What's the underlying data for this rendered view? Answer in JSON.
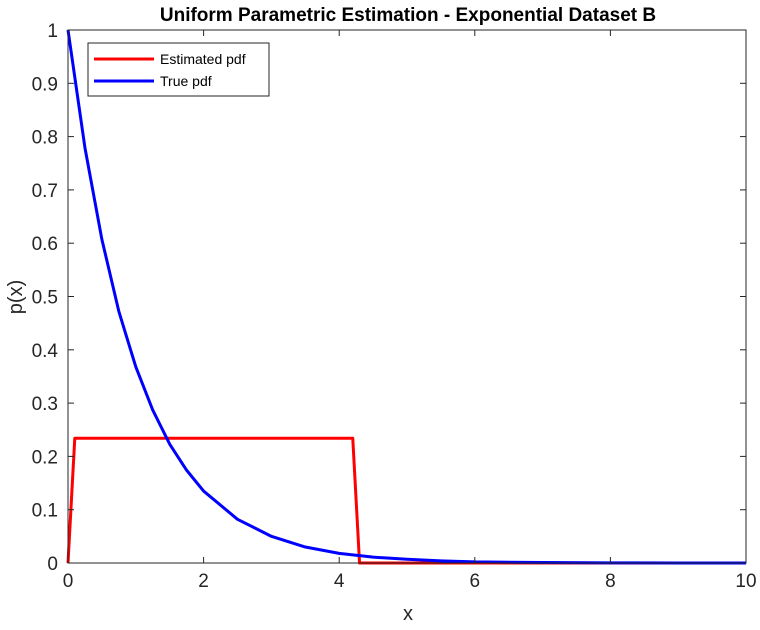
{
  "chart_data": {
    "type": "line",
    "title": "Uniform Parametric Estimation - Exponential Dataset B",
    "xlabel": "x",
    "ylabel": "p(x)",
    "xlim": [
      0,
      10
    ],
    "ylim": [
      0,
      1
    ],
    "xticks": [
      0,
      2,
      4,
      6,
      8,
      10
    ],
    "xtick_labels": [
      "0",
      "2",
      "4",
      "6",
      "8",
      "10"
    ],
    "yticks": [
      0,
      0.1,
      0.2,
      0.3,
      0.4,
      0.5,
      0.6,
      0.7,
      0.8,
      0.9,
      1
    ],
    "ytick_labels": [
      "0",
      "0.1",
      "0.2",
      "0.3",
      "0.4",
      "0.5",
      "0.6",
      "0.7",
      "0.8",
      "0.9",
      "1"
    ],
    "grid": false,
    "legend_position": "top-left",
    "series": [
      {
        "name": "Estimated pdf",
        "color": "#ff0000",
        "x": [
          0,
          0.1,
          4.2,
          4.3,
          10
        ],
        "y": [
          0,
          0.234,
          0.234,
          0,
          0
        ]
      },
      {
        "name": "True pdf",
        "color": "#0000ff",
        "x": [
          0,
          0.25,
          0.5,
          0.75,
          1.0,
          1.25,
          1.5,
          1.75,
          2.0,
          2.5,
          3.0,
          3.5,
          4.0,
          4.5,
          5.0,
          5.5,
          6.0,
          7.0,
          8.0,
          9.0,
          10.0
        ],
        "y": [
          1.0,
          0.779,
          0.607,
          0.472,
          0.368,
          0.287,
          0.223,
          0.174,
          0.135,
          0.082,
          0.05,
          0.03,
          0.018,
          0.011,
          0.007,
          0.004,
          0.002,
          0.001,
          0.0003,
          0.0001,
          5e-05
        ]
      }
    ]
  }
}
